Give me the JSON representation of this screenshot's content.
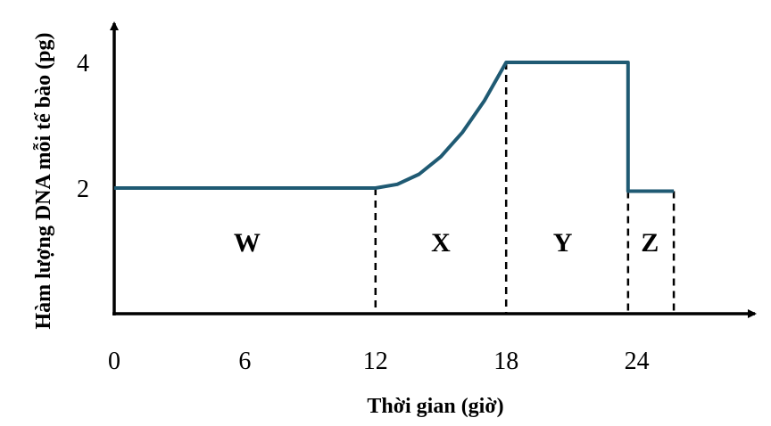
{
  "chart_data": {
    "type": "line",
    "xlabel": "Thời gian (giờ)",
    "ylabel": "Hàm lượng DNA mỗi tế bào (pg)",
    "x_ticks": [
      0,
      6,
      12,
      18,
      24
    ],
    "y_ticks": [
      2,
      4
    ],
    "xlim": [
      0,
      29
    ],
    "ylim": [
      0,
      4.7
    ],
    "series": [
      {
        "color": "#1f5a73",
        "points": [
          {
            "x": 0,
            "y": 2
          },
          {
            "x": 12,
            "y": 2
          },
          {
            "x": 13,
            "y": 2.06
          },
          {
            "x": 14,
            "y": 2.22
          },
          {
            "x": 15,
            "y": 2.5
          },
          {
            "x": 16,
            "y": 2.89
          },
          {
            "x": 17,
            "y": 3.39
          },
          {
            "x": 18,
            "y": 4
          },
          {
            "x": 23.6,
            "y": 4
          },
          {
            "x": 23.6,
            "y": 1.95
          },
          {
            "x": 25.7,
            "y": 1.95
          }
        ]
      }
    ],
    "dividers": [
      12,
      18,
      23.6,
      25.7
    ],
    "phases": [
      {
        "label": "W",
        "x": 6.1,
        "y": 1.15
      },
      {
        "label": "X",
        "x": 15,
        "y": 1.15
      },
      {
        "label": "Y",
        "x": 20.6,
        "y": 1.15
      },
      {
        "label": "Z",
        "x": 24.6,
        "y": 1.15
      }
    ]
  }
}
